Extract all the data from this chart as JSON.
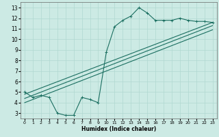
{
  "title": "",
  "xlabel": "Humidex (Indice chaleur)",
  "bg_color": "#cceae4",
  "grid_color": "#b0d8d0",
  "line_color": "#1a6e60",
  "xlim": [
    -0.5,
    23.5
  ],
  "ylim": [
    2.5,
    13.5
  ],
  "xticks": [
    0,
    1,
    2,
    3,
    4,
    5,
    6,
    7,
    8,
    9,
    10,
    11,
    12,
    13,
    14,
    15,
    16,
    17,
    18,
    19,
    20,
    21,
    22,
    23
  ],
  "yticks": [
    3,
    4,
    5,
    6,
    7,
    8,
    9,
    10,
    11,
    12,
    13
  ],
  "jagged_x": [
    0,
    1,
    2,
    3,
    4,
    5,
    6,
    7,
    8,
    9,
    10,
    11,
    12,
    13,
    14,
    15,
    16,
    17,
    18,
    19,
    20,
    21,
    22,
    23
  ],
  "jagged_y": [
    5.0,
    4.5,
    4.7,
    4.5,
    3.0,
    2.8,
    2.8,
    4.5,
    4.3,
    4.0,
    8.8,
    11.2,
    11.8,
    12.2,
    13.0,
    12.5,
    11.8,
    11.8,
    11.8,
    12.0,
    11.8,
    11.7,
    11.7,
    11.6
  ],
  "line1_x": [
    0,
    23
  ],
  "line1_y": [
    4.8,
    11.6
  ],
  "line2_x": [
    0,
    23
  ],
  "line2_y": [
    4.4,
    11.3
  ],
  "line3_x": [
    0,
    23
  ],
  "line3_y": [
    4.0,
    10.9
  ]
}
